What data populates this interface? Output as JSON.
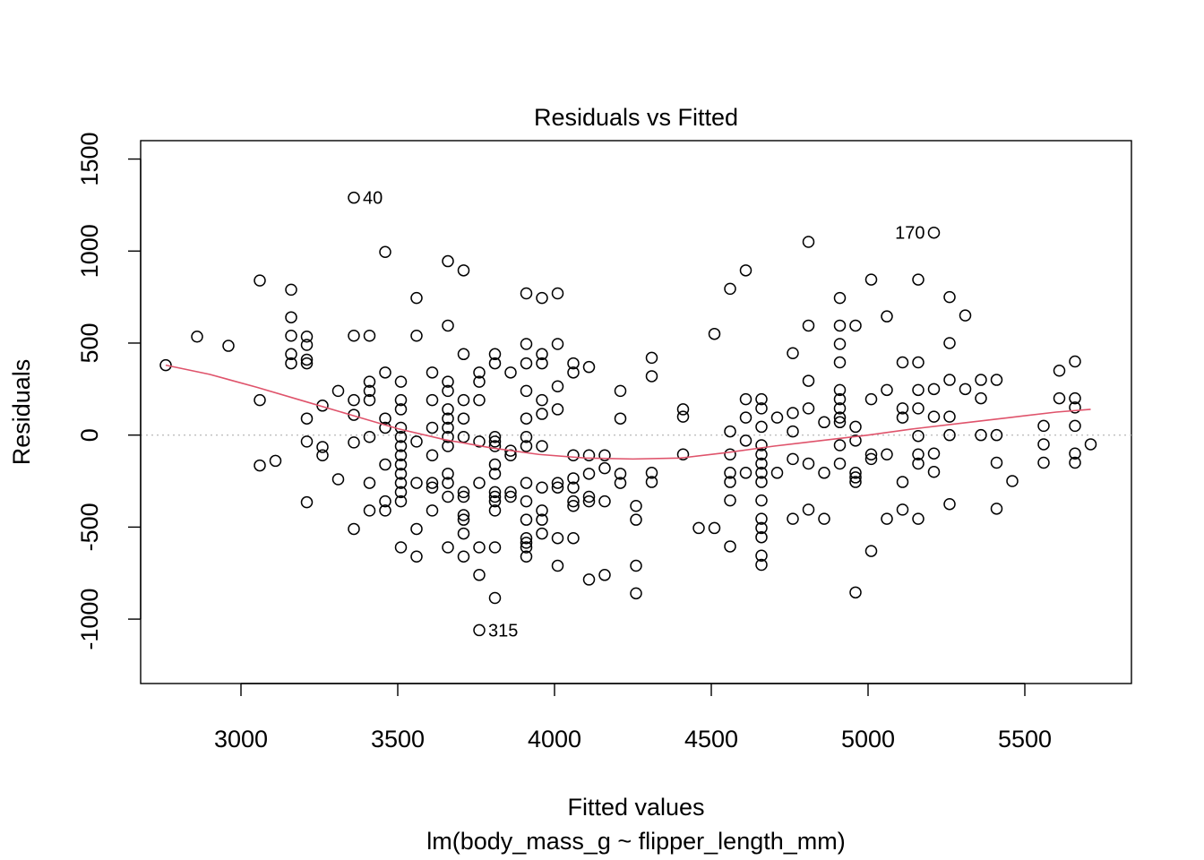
{
  "chart_data": {
    "type": "scatter",
    "title": "Residuals vs Fitted",
    "xlabel": "Fitted values",
    "subtitle": "lm(body_mass_g ~ flipper_length_mm)",
    "ylabel": "Residuals",
    "xlim": [
      2680,
      5840
    ],
    "ylim": [
      -1350,
      1600
    ],
    "xticks": [
      3000,
      3500,
      4000,
      4500,
      5000,
      5500
    ],
    "yticks": [
      -1000,
      -500,
      0,
      500,
      1000,
      1500
    ],
    "grid": false,
    "reference_line": {
      "y": 0,
      "style": "dotted",
      "color": "#BEBEBE"
    },
    "colors": {
      "points": "#000000",
      "smooth": "#DF536B",
      "reference": "#BEBEBE"
    },
    "points": [
      [
        2760,
        380
      ],
      [
        2860,
        535
      ],
      [
        2960,
        485
      ],
      [
        3060,
        840
      ],
      [
        3060,
        190
      ],
      [
        3060,
        -165
      ],
      [
        3110,
        -140
      ],
      [
        3160,
        790
      ],
      [
        3160,
        640
      ],
      [
        3160,
        540
      ],
      [
        3160,
        440
      ],
      [
        3160,
        390
      ],
      [
        3210,
        535
      ],
      [
        3210,
        490
      ],
      [
        3210,
        410
      ],
      [
        3210,
        390
      ],
      [
        3210,
        90
      ],
      [
        3210,
        -35
      ],
      [
        3210,
        -365
      ],
      [
        3260,
        160
      ],
      [
        3260,
        -65
      ],
      [
        3260,
        -110
      ],
      [
        3310,
        240
      ],
      [
        3310,
        -240
      ],
      [
        3360,
        1290
      ],
      [
        3360,
        540
      ],
      [
        3360,
        190
      ],
      [
        3360,
        110
      ],
      [
        3360,
        -40
      ],
      [
        3360,
        -510
      ],
      [
        3410,
        540
      ],
      [
        3410,
        290
      ],
      [
        3410,
        240
      ],
      [
        3410,
        190
      ],
      [
        3410,
        -10
      ],
      [
        3410,
        -260
      ],
      [
        3410,
        -410
      ],
      [
        3460,
        995
      ],
      [
        3460,
        340
      ],
      [
        3460,
        90
      ],
      [
        3460,
        40
      ],
      [
        3460,
        -160
      ],
      [
        3460,
        -360
      ],
      [
        3460,
        -410
      ],
      [
        3510,
        290
      ],
      [
        3510,
        190
      ],
      [
        3510,
        140
      ],
      [
        3510,
        40
      ],
      [
        3510,
        -10
      ],
      [
        3510,
        -60
      ],
      [
        3510,
        -110
      ],
      [
        3510,
        -160
      ],
      [
        3510,
        -210
      ],
      [
        3510,
        -260
      ],
      [
        3510,
        -310
      ],
      [
        3510,
        -360
      ],
      [
        3510,
        -610
      ],
      [
        3560,
        745
      ],
      [
        3560,
        540
      ],
      [
        3560,
        -35
      ],
      [
        3560,
        -260
      ],
      [
        3560,
        -510
      ],
      [
        3560,
        -660
      ],
      [
        3610,
        340
      ],
      [
        3610,
        190
      ],
      [
        3610,
        40
      ],
      [
        3610,
        -110
      ],
      [
        3610,
        -260
      ],
      [
        3610,
        -285
      ],
      [
        3610,
        -410
      ],
      [
        3660,
        945
      ],
      [
        3660,
        595
      ],
      [
        3660,
        290
      ],
      [
        3660,
        240
      ],
      [
        3660,
        140
      ],
      [
        3660,
        90
      ],
      [
        3660,
        40
      ],
      [
        3660,
        -10
      ],
      [
        3660,
        -60
      ],
      [
        3660,
        -210
      ],
      [
        3660,
        -260
      ],
      [
        3660,
        -335
      ],
      [
        3660,
        -610
      ],
      [
        3710,
        895
      ],
      [
        3710,
        440
      ],
      [
        3710,
        190
      ],
      [
        3710,
        90
      ],
      [
        3710,
        -10
      ],
      [
        3710,
        -310
      ],
      [
        3710,
        -335
      ],
      [
        3710,
        -435
      ],
      [
        3710,
        -460
      ],
      [
        3710,
        -535
      ],
      [
        3710,
        -660
      ],
      [
        3760,
        340
      ],
      [
        3760,
        290
      ],
      [
        3760,
        190
      ],
      [
        3760,
        -35
      ],
      [
        3760,
        -260
      ],
      [
        3760,
        -610
      ],
      [
        3760,
        -760
      ],
      [
        3760,
        -1060
      ],
      [
        3810,
        440
      ],
      [
        3810,
        390
      ],
      [
        3810,
        -10
      ],
      [
        3810,
        -35
      ],
      [
        3810,
        -60
      ],
      [
        3810,
        -160
      ],
      [
        3810,
        -210
      ],
      [
        3810,
        -310
      ],
      [
        3810,
        -335
      ],
      [
        3810,
        -360
      ],
      [
        3810,
        -410
      ],
      [
        3810,
        -610
      ],
      [
        3810,
        -885
      ],
      [
        3860,
        340
      ],
      [
        3860,
        -85
      ],
      [
        3860,
        -110
      ],
      [
        3860,
        -310
      ],
      [
        3860,
        -335
      ],
      [
        3910,
        770
      ],
      [
        3910,
        495
      ],
      [
        3910,
        390
      ],
      [
        3910,
        240
      ],
      [
        3910,
        90
      ],
      [
        3910,
        -10
      ],
      [
        3910,
        -60
      ],
      [
        3910,
        -260
      ],
      [
        3910,
        -360
      ],
      [
        3910,
        -460
      ],
      [
        3910,
        -560
      ],
      [
        3910,
        -585
      ],
      [
        3910,
        -610
      ],
      [
        3910,
        -660
      ],
      [
        3960,
        745
      ],
      [
        3960,
        440
      ],
      [
        3960,
        390
      ],
      [
        3960,
        190
      ],
      [
        3960,
        115
      ],
      [
        3960,
        -60
      ],
      [
        3960,
        -285
      ],
      [
        3960,
        -410
      ],
      [
        3960,
        -460
      ],
      [
        3960,
        -535
      ],
      [
        4010,
        770
      ],
      [
        4010,
        495
      ],
      [
        4010,
        265
      ],
      [
        4010,
        140
      ],
      [
        4010,
        -260
      ],
      [
        4010,
        -285
      ],
      [
        4010,
        -560
      ],
      [
        4010,
        -710
      ],
      [
        4060,
        390
      ],
      [
        4060,
        340
      ],
      [
        4060,
        -110
      ],
      [
        4060,
        -235
      ],
      [
        4060,
        -285
      ],
      [
        4060,
        -360
      ],
      [
        4060,
        -385
      ],
      [
        4060,
        -560
      ],
      [
        4110,
        370
      ],
      [
        4110,
        -110
      ],
      [
        4110,
        -210
      ],
      [
        4110,
        -335
      ],
      [
        4110,
        -360
      ],
      [
        4110,
        -785
      ],
      [
        4160,
        -110
      ],
      [
        4160,
        -180
      ],
      [
        4160,
        -360
      ],
      [
        4160,
        -760
      ],
      [
        4210,
        240
      ],
      [
        4210,
        90
      ],
      [
        4210,
        -210
      ],
      [
        4210,
        -260
      ],
      [
        4260,
        -385
      ],
      [
        4260,
        -460
      ],
      [
        4260,
        -710
      ],
      [
        4260,
        -860
      ],
      [
        4310,
        420
      ],
      [
        4310,
        320
      ],
      [
        4310,
        -205
      ],
      [
        4310,
        -255
      ],
      [
        4410,
        140
      ],
      [
        4410,
        100
      ],
      [
        4410,
        -105
      ],
      [
        4460,
        -505
      ],
      [
        4510,
        -505
      ],
      [
        4510,
        550
      ],
      [
        4560,
        795
      ],
      [
        4560,
        20
      ],
      [
        4560,
        -105
      ],
      [
        4560,
        -205
      ],
      [
        4560,
        -255
      ],
      [
        4560,
        -355
      ],
      [
        4560,
        -605
      ],
      [
        4610,
        895
      ],
      [
        4610,
        195
      ],
      [
        4610,
        95
      ],
      [
        4610,
        -30
      ],
      [
        4610,
        -205
      ],
      [
        4660,
        195
      ],
      [
        4660,
        145
      ],
      [
        4660,
        45
      ],
      [
        4660,
        -55
      ],
      [
        4660,
        -105
      ],
      [
        4660,
        -155
      ],
      [
        4660,
        -205
      ],
      [
        4660,
        -255
      ],
      [
        4660,
        -355
      ],
      [
        4660,
        -455
      ],
      [
        4660,
        -505
      ],
      [
        4660,
        -555
      ],
      [
        4660,
        -655
      ],
      [
        4660,
        -705
      ],
      [
        4710,
        95
      ],
      [
        4710,
        -205
      ],
      [
        4760,
        445
      ],
      [
        4760,
        120
      ],
      [
        4760,
        20
      ],
      [
        4760,
        -130
      ],
      [
        4760,
        -455
      ],
      [
        4810,
        1050
      ],
      [
        4810,
        595
      ],
      [
        4810,
        295
      ],
      [
        4810,
        145
      ],
      [
        4810,
        -155
      ],
      [
        4810,
        -405
      ],
      [
        4860,
        70
      ],
      [
        4860,
        -205
      ],
      [
        4860,
        -455
      ],
      [
        4910,
        745
      ],
      [
        4910,
        595
      ],
      [
        4910,
        495
      ],
      [
        4910,
        395
      ],
      [
        4910,
        245
      ],
      [
        4910,
        195
      ],
      [
        4910,
        145
      ],
      [
        4910,
        95
      ],
      [
        4910,
        70
      ],
      [
        4910,
        -55
      ],
      [
        4910,
        -155
      ],
      [
        4960,
        595
      ],
      [
        4960,
        45
      ],
      [
        4960,
        -30
      ],
      [
        4960,
        -205
      ],
      [
        4960,
        -230
      ],
      [
        4960,
        -255
      ],
      [
        4960,
        -855
      ],
      [
        5010,
        845
      ],
      [
        5010,
        195
      ],
      [
        5010,
        -105
      ],
      [
        5010,
        -130
      ],
      [
        5010,
        -630
      ],
      [
        5060,
        645
      ],
      [
        5060,
        245
      ],
      [
        5060,
        -105
      ],
      [
        5060,
        -455
      ],
      [
        5110,
        395
      ],
      [
        5110,
        145
      ],
      [
        5110,
        95
      ],
      [
        5110,
        -255
      ],
      [
        5110,
        -405
      ],
      [
        5160,
        845
      ],
      [
        5160,
        395
      ],
      [
        5160,
        245
      ],
      [
        5160,
        145
      ],
      [
        5160,
        -5
      ],
      [
        5160,
        -105
      ],
      [
        5160,
        -155
      ],
      [
        5160,
        -455
      ],
      [
        5210,
        1100
      ],
      [
        5210,
        250
      ],
      [
        5210,
        100
      ],
      [
        5210,
        -100
      ],
      [
        5210,
        -200
      ],
      [
        5260,
        750
      ],
      [
        5260,
        500
      ],
      [
        5260,
        300
      ],
      [
        5260,
        100
      ],
      [
        5260,
        0
      ],
      [
        5260,
        -375
      ],
      [
        5310,
        650
      ],
      [
        5310,
        250
      ],
      [
        5360,
        300
      ],
      [
        5360,
        200
      ],
      [
        5360,
        0
      ],
      [
        5410,
        300
      ],
      [
        5410,
        0
      ],
      [
        5410,
        -150
      ],
      [
        5410,
        -400
      ],
      [
        5460,
        -250
      ],
      [
        5560,
        50
      ],
      [
        5560,
        -50
      ],
      [
        5560,
        -150
      ],
      [
        5610,
        350
      ],
      [
        5610,
        200
      ],
      [
        5660,
        400
      ],
      [
        5660,
        200
      ],
      [
        5660,
        150
      ],
      [
        5660,
        50
      ],
      [
        5660,
        -100
      ],
      [
        5660,
        -150
      ],
      [
        5710,
        -50
      ]
    ],
    "smooth": [
      [
        2760,
        380
      ],
      [
        2900,
        330
      ],
      [
        3050,
        260
      ],
      [
        3200,
        185
      ],
      [
        3350,
        110
      ],
      [
        3500,
        35
      ],
      [
        3650,
        -25
      ],
      [
        3800,
        -70
      ],
      [
        3950,
        -105
      ],
      [
        4100,
        -125
      ],
      [
        4250,
        -130
      ],
      [
        4400,
        -125
      ],
      [
        4550,
        -95
      ],
      [
        4700,
        -60
      ],
      [
        4850,
        -30
      ],
      [
        5000,
        0
      ],
      [
        5150,
        35
      ],
      [
        5300,
        65
      ],
      [
        5450,
        95
      ],
      [
        5600,
        125
      ],
      [
        5710,
        140
      ]
    ],
    "annotations": [
      {
        "label": "40",
        "x": 3360,
        "y": 1290,
        "side": "right"
      },
      {
        "label": "170",
        "x": 5210,
        "y": 1100,
        "side": "left"
      },
      {
        "label": "315",
        "x": 3760,
        "y": -1060,
        "side": "right"
      }
    ]
  }
}
